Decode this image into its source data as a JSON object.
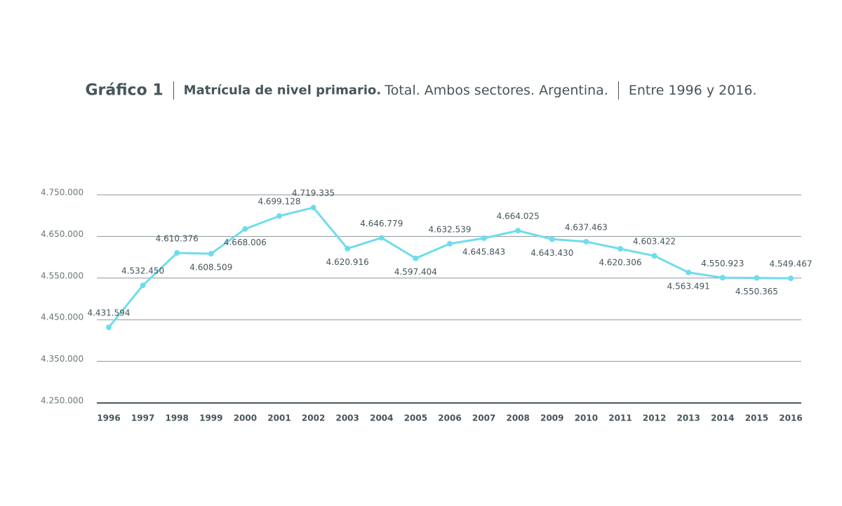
{
  "chart_data": {
    "type": "line",
    "title": "Gráfico 1",
    "subtitle": "Matrícula de nivel primario.",
    "subtitle_detail": "Total. Ambos sectores. Argentina.",
    "period": "Entre 1996 y 2016.",
    "categories": [
      "1996",
      "1997",
      "1998",
      "1999",
      "2000",
      "2001",
      "2002",
      "2003",
      "2004",
      "2005",
      "2006",
      "2007",
      "2008",
      "2009",
      "2010",
      "2011",
      "2012",
      "2013",
      "2014",
      "2015",
      "2016"
    ],
    "series": [
      {
        "name": "Matrícula",
        "color": "#6fdcec",
        "values": [
          4431594,
          4532450,
          4610376,
          4608509,
          4668006,
          4699128,
          4719335,
          4620916,
          4646779,
          4597404,
          4632539,
          4645843,
          4664025,
          4643430,
          4637463,
          4620306,
          4603422,
          4563491,
          4550923,
          4550365,
          4549467
        ],
        "value_labels": [
          "4.431.594",
          "4.532.450",
          "4.610.376",
          "4.608.509",
          "4.668.006",
          "4.699.128",
          "4.719.335",
          "4.620.916",
          "4.646.779",
          "4.597.404",
          "4.632.539",
          "4.645.843",
          "4.664.025",
          "4.643.430",
          "4.637.463",
          "4.620.306",
          "4.603.422",
          "4.563.491",
          "4.550.923",
          "4.550.365",
          "4.549.467"
        ]
      }
    ],
    "ylim": [
      4250000,
      4750000
    ],
    "yticks": [
      {
        "value": 4250000,
        "label": "4.250.000"
      },
      {
        "value": 4350000,
        "label": "4.350.000"
      },
      {
        "value": 4450000,
        "label": "4.450.000"
      },
      {
        "value": 4550000,
        "label": "4.550.000"
      },
      {
        "value": 4650000,
        "label": "4.650.000"
      },
      {
        "value": 4750000,
        "label": "4.750.000"
      }
    ],
    "grid": true
  }
}
